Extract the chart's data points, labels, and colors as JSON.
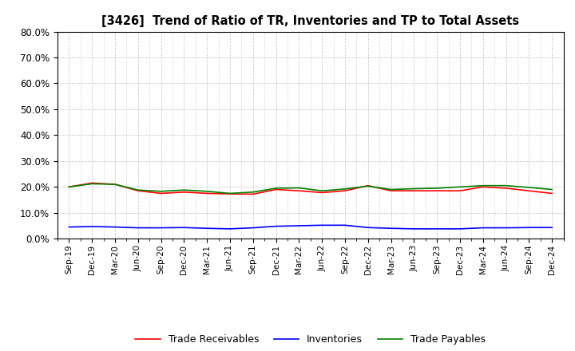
{
  "title": "[3426]  Trend of Ratio of TR, Inventories and TP to Total Assets",
  "x_labels": [
    "Sep-19",
    "Dec-19",
    "Mar-20",
    "Jun-20",
    "Sep-20",
    "Dec-20",
    "Mar-21",
    "Jun-21",
    "Sep-21",
    "Dec-21",
    "Mar-22",
    "Jun-22",
    "Sep-22",
    "Dec-22",
    "Mar-23",
    "Jun-23",
    "Sep-23",
    "Dec-23",
    "Mar-24",
    "Jun-24",
    "Sep-24",
    "Dec-24"
  ],
  "trade_receivables": [
    0.2,
    0.215,
    0.21,
    0.185,
    0.175,
    0.18,
    0.175,
    0.173,
    0.172,
    0.19,
    0.185,
    0.178,
    0.185,
    0.205,
    0.185,
    0.185,
    0.185,
    0.185,
    0.2,
    0.195,
    0.185,
    0.175
  ],
  "inventories": [
    0.045,
    0.047,
    0.045,
    0.042,
    0.042,
    0.043,
    0.04,
    0.038,
    0.042,
    0.048,
    0.05,
    0.052,
    0.052,
    0.043,
    0.04,
    0.038,
    0.038,
    0.038,
    0.042,
    0.042,
    0.043,
    0.043
  ],
  "trade_payables": [
    0.2,
    0.212,
    0.21,
    0.188,
    0.183,
    0.188,
    0.183,
    0.175,
    0.18,
    0.195,
    0.196,
    0.185,
    0.192,
    0.203,
    0.19,
    0.193,
    0.195,
    0.2,
    0.205,
    0.205,
    0.198,
    0.19
  ],
  "tr_color": "#FF0000",
  "inv_color": "#0000FF",
  "tp_color": "#008000",
  "ylim": [
    0.0,
    0.8
  ],
  "yticks": [
    0.0,
    0.1,
    0.2,
    0.3,
    0.4,
    0.5,
    0.6,
    0.7,
    0.8
  ],
  "background_color": "#FFFFFF",
  "grid_color": "#999999",
  "legend_labels": [
    "Trade Receivables",
    "Inventories",
    "Trade Payables"
  ]
}
